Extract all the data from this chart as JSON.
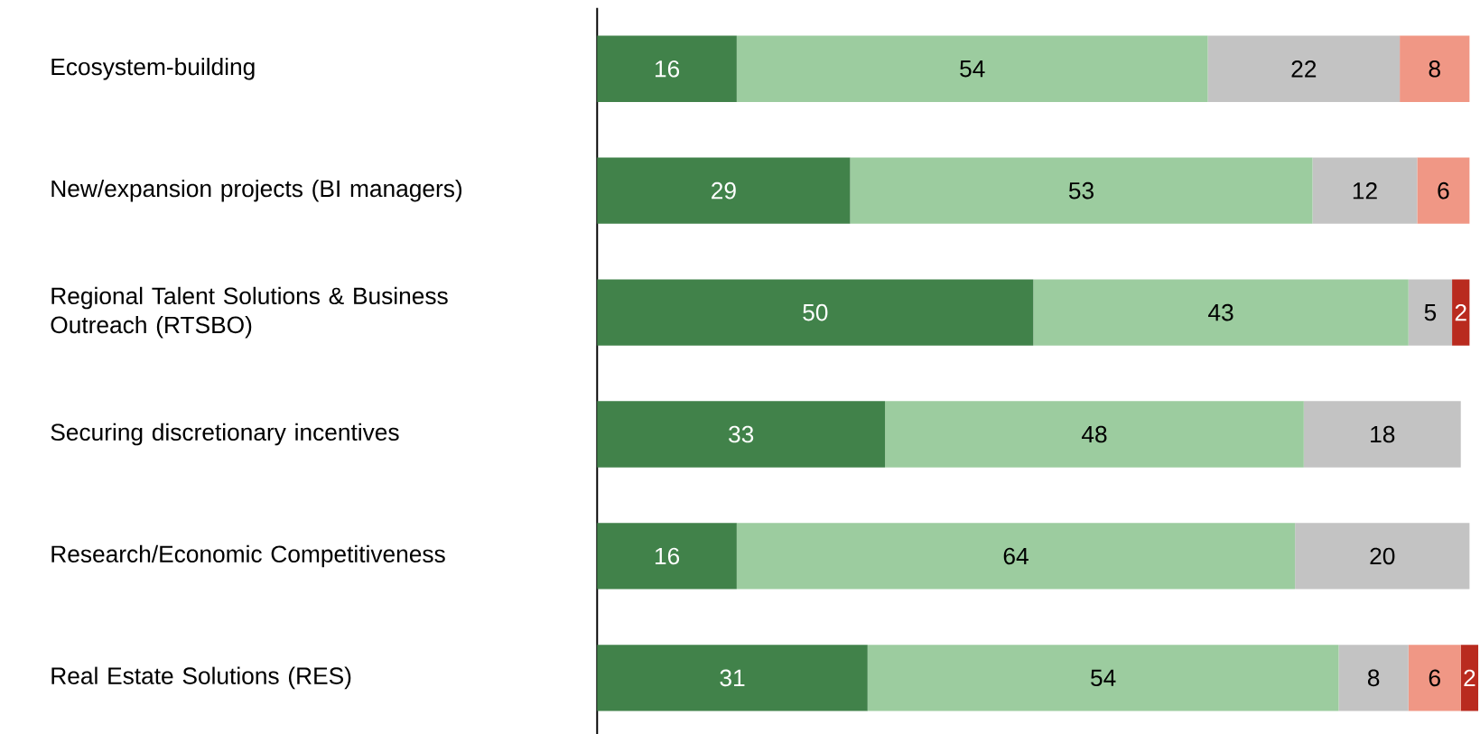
{
  "chart_data": {
    "type": "bar",
    "orientation": "horizontal",
    "stacked": true,
    "data_labels": true,
    "tick_labels": "y",
    "categories": [
      "Ecosystem-building",
      "New/expansion projects (BI managers)",
      "Regional Talent Solutions & Business Outreach (RTSBO)",
      "Securing discretionary incentives",
      "Research/Economic Competitiveness",
      "Real Estate Solutions (RES)"
    ],
    "series": [
      {
        "color": "#41824a",
        "values": [
          16,
          29,
          50,
          33,
          16,
          31
        ]
      },
      {
        "color": "#9ccc9f",
        "values": [
          54,
          53,
          43,
          48,
          64,
          54
        ]
      },
      {
        "color": "#c3c3c3",
        "values": [
          22,
          12,
          5,
          18,
          20,
          8
        ]
      },
      {
        "color": "#f09785",
        "values": [
          8,
          6,
          null,
          null,
          null,
          6
        ]
      },
      {
        "color": "#b92b1f",
        "values": [
          null,
          null,
          2,
          null,
          null,
          2
        ]
      }
    ]
  }
}
